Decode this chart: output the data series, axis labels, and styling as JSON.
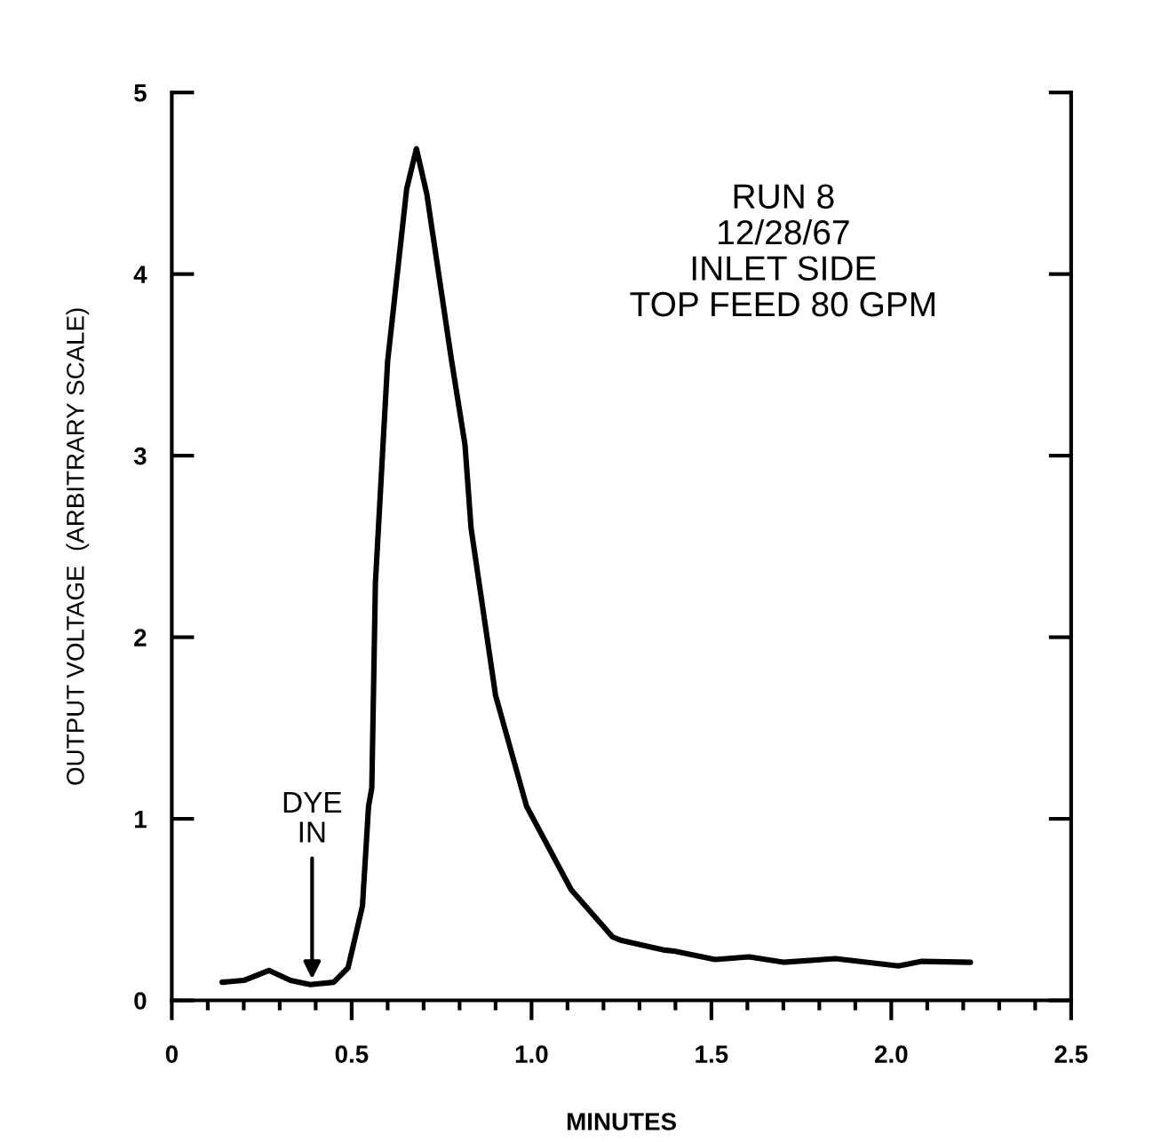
{
  "chart_data": {
    "type": "line",
    "xlabel": "MINUTES",
    "ylabel": "OUTPUT VOLTAGE  (ARBITRARY SCALE)",
    "x": [
      0.14,
      0.2,
      0.27,
      0.33,
      0.385,
      0.45,
      0.49,
      0.53,
      0.547,
      0.556,
      0.566,
      0.6,
      0.653,
      0.68,
      0.709,
      0.778,
      0.815,
      0.832,
      0.9,
      0.986,
      1.11,
      1.225,
      1.25,
      1.37,
      1.4,
      1.51,
      1.605,
      1.7,
      1.845,
      2.02,
      2.085,
      2.22
    ],
    "series": [
      {
        "color": "#000000",
        "values": [
          0.1,
          0.11,
          0.165,
          0.11,
          0.087,
          0.1,
          0.18,
          0.52,
          1.07,
          1.17,
          2.3,
          3.52,
          4.47,
          4.69,
          4.44,
          3.52,
          3.06,
          2.6,
          1.68,
          1.07,
          0.61,
          0.35,
          0.33,
          0.277,
          0.27,
          0.225,
          0.24,
          0.21,
          0.23,
          0.19,
          0.215,
          0.21
        ]
      }
    ],
    "xlim": [
      0,
      2.5
    ],
    "ylim": [
      0,
      5
    ],
    "xticks": [
      0,
      {
        "value": 0.1,
        "label": null
      },
      {
        "value": 0.2,
        "label": null
      },
      {
        "value": 0.3,
        "label": null
      },
      {
        "value": 0.4,
        "label": null
      },
      0.5,
      {
        "value": 0.6,
        "label": null
      },
      {
        "value": 0.7,
        "label": null
      },
      {
        "value": 0.8,
        "label": null
      },
      {
        "value": 0.9,
        "label": null
      },
      {
        "value": 1.0,
        "label": "1.0"
      },
      {
        "value": 1.1,
        "label": null
      },
      {
        "value": 1.2,
        "label": null
      },
      {
        "value": 1.3,
        "label": null
      },
      {
        "value": 1.4,
        "label": null
      },
      1.5,
      {
        "value": 1.6,
        "label": null
      },
      {
        "value": 1.7,
        "label": null
      },
      {
        "value": 1.8,
        "label": null
      },
      {
        "value": 1.9,
        "label": null
      },
      {
        "value": 2.0,
        "label": "2.0"
      },
      {
        "value": 2.1,
        "label": null
      },
      {
        "value": 2.2,
        "label": null
      },
      {
        "value": 2.3,
        "label": null
      },
      {
        "value": 2.4,
        "label": null
      },
      2.5
    ],
    "yticks": [
      0,
      1,
      2,
      3,
      4,
      5
    ],
    "grid": false,
    "legend": false,
    "marker": "none",
    "line_style": "solid",
    "annotations": [
      {
        "text": "DYE\nIN",
        "x": 0.39,
        "y": 0.09
      },
      "RUN 8\n12/28/67\nINLET SIDE\nTOP FEED 80 GPM"
    ]
  }
}
